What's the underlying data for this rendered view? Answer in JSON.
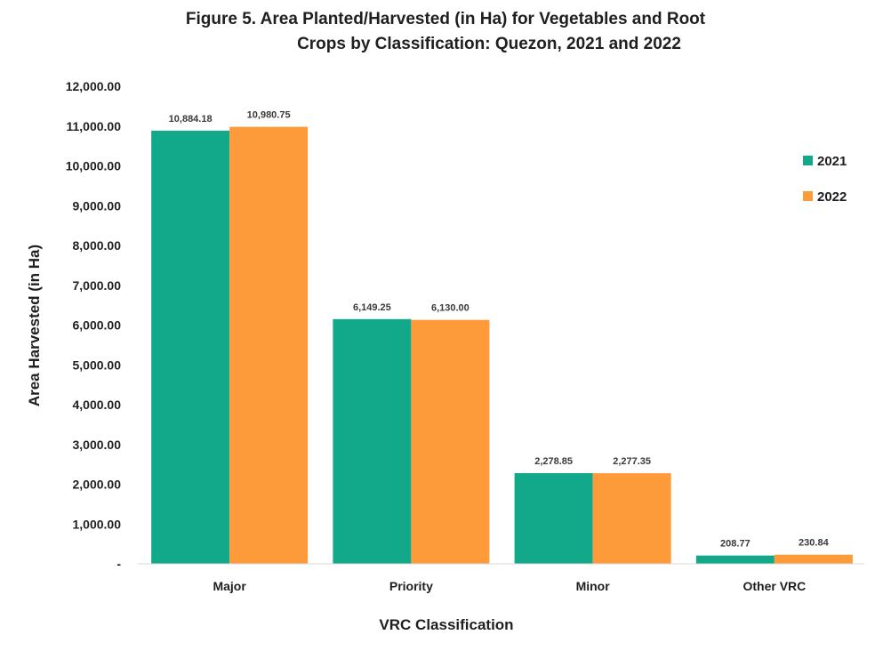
{
  "title_line1": "Figure 5. Area Planted/Harvested (in Ha) for Vegetables and Root",
  "title_line2": "Crops by Classification: Quezon, 2021 and 2022",
  "chart_data": {
    "type": "bar",
    "title": "Figure 5. Area Planted/Harvested (in Ha) for Vegetables and Root Crops by Classification: Quezon, 2021 and 2022",
    "xlabel": "VRC Classification",
    "ylabel": "Area Harvested (in Ha)",
    "categories": [
      "Major",
      "Priority",
      "Minor",
      "Other VRC"
    ],
    "series": [
      {
        "name": "2021",
        "color": "#12a98a",
        "values": [
          10884.18,
          6149.25,
          2278.85,
          208.77
        ],
        "labels": [
          "10,884.18",
          "6,149.25",
          "2,278.85",
          "208.77"
        ]
      },
      {
        "name": "2022",
        "color": "#fd9a3a",
        "values": [
          10980.75,
          6130.0,
          2277.35,
          230.84
        ],
        "labels": [
          "10,980.75",
          "6,130.00",
          "2,277.35",
          "230.84"
        ]
      }
    ],
    "ylim": [
      0,
      12000
    ],
    "y_ticks": [
      0,
      1000,
      2000,
      3000,
      4000,
      5000,
      6000,
      7000,
      8000,
      9000,
      10000,
      11000,
      12000
    ],
    "y_tick_labels": [
      "-",
      "1,000.00",
      "2,000.00",
      "3,000.00",
      "4,000.00",
      "5,000.00",
      "6,000.00",
      "7,000.00",
      "8,000.00",
      "9,000.00",
      "10,000.00",
      "11,000.00",
      "12,000.00"
    ],
    "grid": false,
    "legend_position": "right"
  }
}
